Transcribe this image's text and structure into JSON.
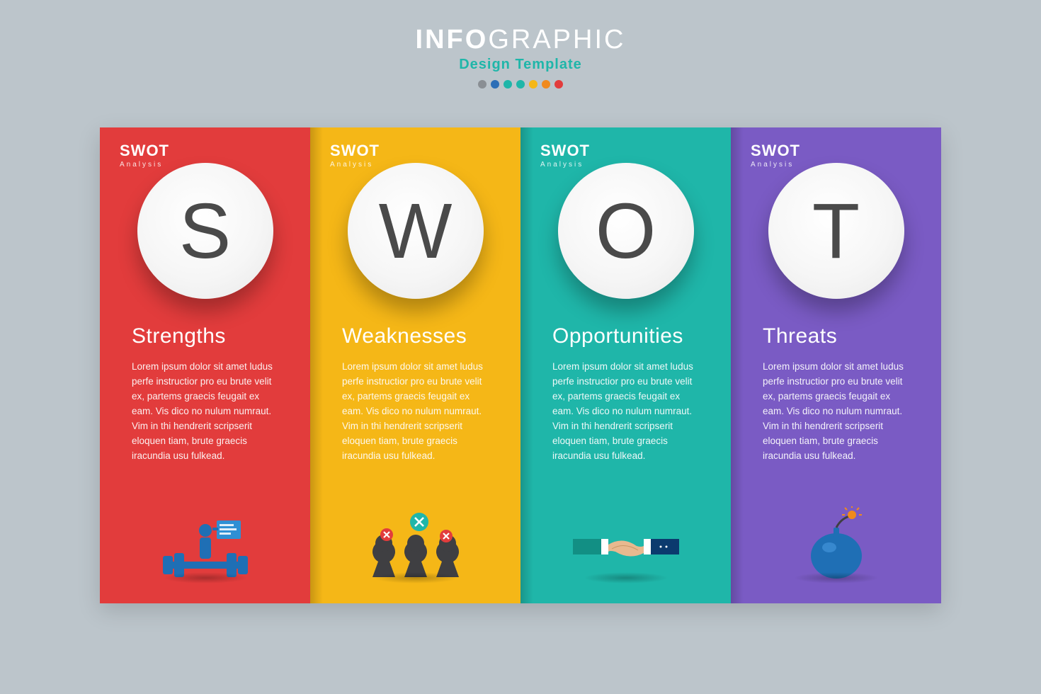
{
  "header": {
    "title_prefix": "INFO",
    "title_suffix": "GRAPHIC",
    "subtitle": "Design Template",
    "dot_colors": [
      "#8a8f94",
      "#2d6fb7",
      "#1fb6a9",
      "#1fb6a9",
      "#f5b717",
      "#f08a1d",
      "#e23c3c"
    ]
  },
  "panels": [
    {
      "tag_title": "SWOT",
      "tag_sub": "Analysis",
      "letter": "S",
      "heading": "Strengths",
      "body": "Lorem ipsum dolor sit amet ludus perfe instructior pro eu brute velit ex, partems graecis feugait ex eam. Vis dico no nulum numraut. Vim in thi hendrerit scripserit eloquen tiam, brute graecis iracundia usu fulkead.",
      "bg_color": "#e23c3c",
      "icon": "strengths"
    },
    {
      "tag_title": "SWOT",
      "tag_sub": "Analysis",
      "letter": "W",
      "heading": "Weaknesses",
      "body": "Lorem ipsum dolor sit amet ludus perfe instructior pro eu brute velit ex, partems graecis feugait ex eam. Vis dico no nulum numraut. Vim in thi hendrerit scripserit eloquen tiam, brute graecis iracundia usu fulkead.",
      "bg_color": "#f5b717",
      "icon": "weaknesses"
    },
    {
      "tag_title": "SWOT",
      "tag_sub": "Analysis",
      "letter": "O",
      "heading": "Opportunities",
      "body": "Lorem ipsum dolor sit amet ludus perfe instructior pro eu brute velit ex, partems graecis feugait ex eam. Vis dico no nulum numraut. Vim in thi hendrerit scripserit eloquen tiam, brute graecis iracundia usu fulkead.",
      "bg_color": "#1fb6a9",
      "icon": "opportunities"
    },
    {
      "tag_title": "SWOT",
      "tag_sub": "Analysis",
      "letter": "T",
      "heading": "Threats",
      "body": "Lorem ipsum dolor sit amet ludus perfe instructior pro eu brute velit ex, partems graecis feugait ex eam. Vis dico no nulum numraut. Vim in thi hendrerit scripserit eloquen tiam, brute graecis iracundia usu fulkead.",
      "bg_color": "#7a5bc4",
      "icon": "threats"
    }
  ],
  "icon_colors": {
    "blue_primary": "#1f6fb5",
    "blue_light": "#2f8fd4",
    "dark_gray": "#3f3f42",
    "red_x": "#e23c3c",
    "teal": "#1fb6a9",
    "skin": "#e8b98f",
    "navy": "#0b3a6e",
    "orange": "#f08a1d"
  }
}
